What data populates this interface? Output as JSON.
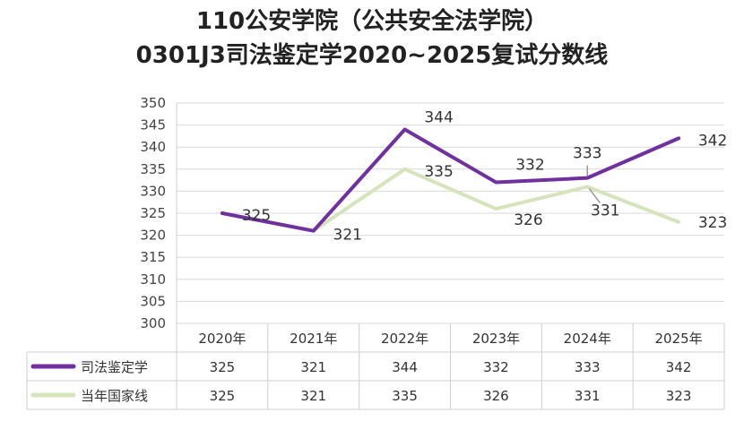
{
  "title_line1": "110公安学院（公共安全法学院）",
  "title_line2": "0301J3司法鉴定学2020~2025复试分数线",
  "chart_data": {
    "type": "line",
    "categories": [
      "2020年",
      "2021年",
      "2022年",
      "2023年",
      "2024年",
      "2025年"
    ],
    "series": [
      {
        "name": "司法鉴定学",
        "values": [
          325,
          321,
          344,
          332,
          333,
          342
        ],
        "color": "#7030a0"
      },
      {
        "name": "当年国家线",
        "values": [
          325,
          321,
          335,
          326,
          331,
          323
        ],
        "color": "#d6e4bc"
      }
    ],
    "ylim": [
      300,
      350
    ],
    "yticks": [
      300,
      305,
      310,
      315,
      320,
      325,
      330,
      335,
      340,
      345,
      350
    ],
    "grid": true,
    "data_table": true
  }
}
